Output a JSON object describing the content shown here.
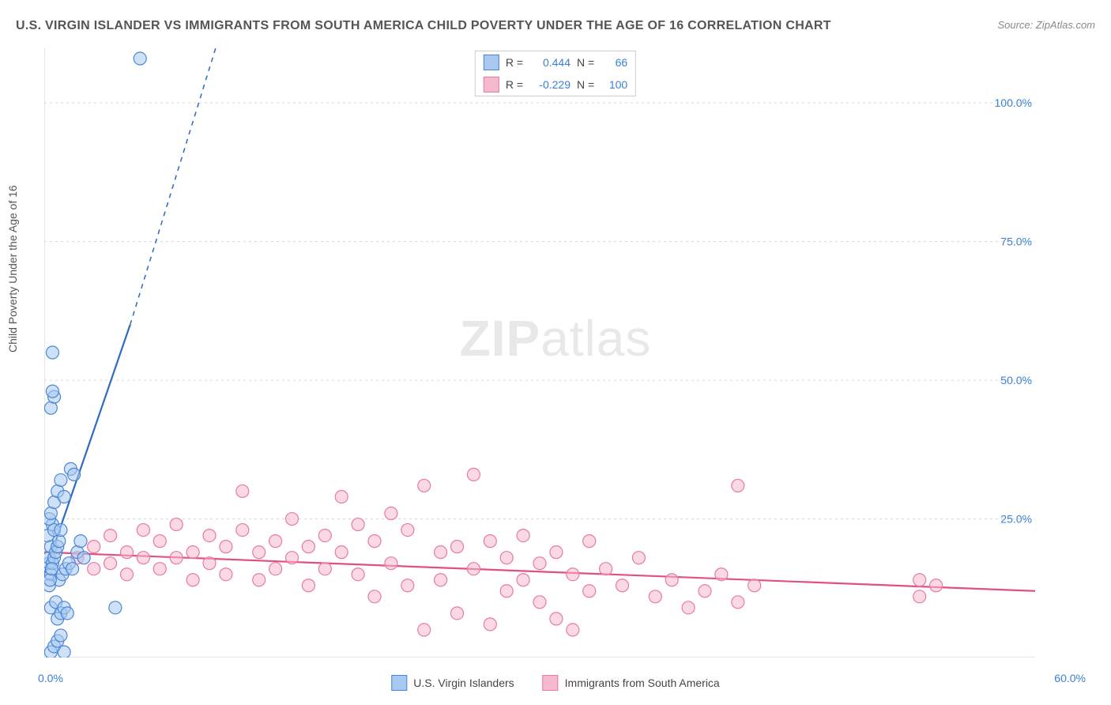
{
  "title": "U.S. VIRGIN ISLANDER VS IMMIGRANTS FROM SOUTH AMERICA CHILD POVERTY UNDER THE AGE OF 16 CORRELATION CHART",
  "source": "Source: ZipAtlas.com",
  "y_axis_label": "Child Poverty Under the Age of 16",
  "watermark_bold": "ZIP",
  "watermark_light": "atlas",
  "chart": {
    "type": "scatter",
    "background_color": "#ffffff",
    "grid_color": "#d8d8d8",
    "axis_color": "#cccccc",
    "xlim": [
      0,
      60
    ],
    "ylim": [
      0,
      110
    ],
    "y_ticks": [
      25,
      50,
      75,
      100
    ],
    "y_tick_labels": [
      "25.0%",
      "50.0%",
      "75.0%",
      "100.0%"
    ],
    "y_tick_color": "#3a7fd5",
    "x_tick_labels": [
      "0.0%",
      "60.0%"
    ],
    "marker_radius": 8,
    "series": [
      {
        "name": "U.S. Virgin Islanders",
        "color_fill": "#a8c8ef",
        "color_stroke": "#4a86d8",
        "swatch_fill": "#a8c8ef",
        "swatch_stroke": "#4a86d8",
        "R": "0.444",
        "N": "66",
        "trend": {
          "x1": 0,
          "y1": 15,
          "x2": 5.2,
          "y2": 60,
          "dash_x2": 10.6,
          "dash_y2": 112,
          "stroke": "#2f6bc0",
          "width": 2.2
        },
        "points": [
          [
            0.3,
            17
          ],
          [
            0.3,
            18
          ],
          [
            0.4,
            20
          ],
          [
            0.2,
            22
          ],
          [
            0.5,
            24
          ],
          [
            0.3,
            25
          ],
          [
            0.6,
            23
          ],
          [
            0.4,
            26
          ],
          [
            0.4,
            9
          ],
          [
            0.7,
            10
          ],
          [
            0.8,
            7
          ],
          [
            1.0,
            8
          ],
          [
            1.2,
            9
          ],
          [
            1.4,
            8
          ],
          [
            0.4,
            15
          ],
          [
            0.5,
            17
          ],
          [
            0.6,
            18
          ],
          [
            0.7,
            19
          ],
          [
            0.8,
            20
          ],
          [
            0.9,
            21
          ],
          [
            1.0,
            23
          ],
          [
            0.6,
            28
          ],
          [
            0.8,
            30
          ],
          [
            1.0,
            32
          ],
          [
            1.2,
            29
          ],
          [
            1.6,
            34
          ],
          [
            1.8,
            33
          ],
          [
            0.4,
            45
          ],
          [
            0.6,
            47
          ],
          [
            0.5,
            48
          ],
          [
            0.5,
            55
          ],
          [
            5.8,
            108
          ],
          [
            4.3,
            9
          ],
          [
            0.4,
            1
          ],
          [
            0.6,
            2
          ],
          [
            0.8,
            3
          ],
          [
            1.0,
            4
          ],
          [
            1.2,
            1
          ],
          [
            2.0,
            19
          ],
          [
            2.2,
            21
          ],
          [
            2.4,
            18
          ],
          [
            0.9,
            14
          ],
          [
            1.1,
            15
          ],
          [
            1.3,
            16
          ],
          [
            1.5,
            17
          ],
          [
            1.7,
            16
          ],
          [
            0.3,
            13
          ],
          [
            0.35,
            14
          ],
          [
            0.45,
            16
          ]
        ]
      },
      {
        "name": "Immigrants from South America",
        "color_fill": "#f5b8ce",
        "color_stroke": "#e77aa5",
        "swatch_fill": "#f5b8ce",
        "swatch_stroke": "#e77aa5",
        "R": "-0.229",
        "N": "100",
        "trend": {
          "x1": 0,
          "y1": 19,
          "x2": 60,
          "y2": 12,
          "stroke": "#e24f86",
          "width": 2.2
        },
        "points": [
          [
            2,
            18
          ],
          [
            3,
            20
          ],
          [
            3,
            16
          ],
          [
            4,
            22
          ],
          [
            4,
            17
          ],
          [
            5,
            19
          ],
          [
            5,
            15
          ],
          [
            6,
            23
          ],
          [
            6,
            18
          ],
          [
            7,
            21
          ],
          [
            7,
            16
          ],
          [
            8,
            24
          ],
          [
            8,
            18
          ],
          [
            9,
            19
          ],
          [
            9,
            14
          ],
          [
            10,
            22
          ],
          [
            10,
            17
          ],
          [
            11,
            20
          ],
          [
            11,
            15
          ],
          [
            12,
            23
          ],
          [
            12,
            30
          ],
          [
            13,
            19
          ],
          [
            13,
            14
          ],
          [
            14,
            21
          ],
          [
            14,
            16
          ],
          [
            15,
            25
          ],
          [
            15,
            18
          ],
          [
            16,
            20
          ],
          [
            16,
            13
          ],
          [
            17,
            22
          ],
          [
            17,
            16
          ],
          [
            18,
            29
          ],
          [
            18,
            19
          ],
          [
            19,
            24
          ],
          [
            19,
            15
          ],
          [
            20,
            21
          ],
          [
            20,
            11
          ],
          [
            21,
            26
          ],
          [
            21,
            17
          ],
          [
            22,
            23
          ],
          [
            22,
            13
          ],
          [
            23,
            31
          ],
          [
            23,
            5
          ],
          [
            24,
            19
          ],
          [
            24,
            14
          ],
          [
            25,
            20
          ],
          [
            25,
            8
          ],
          [
            26,
            33
          ],
          [
            26,
            16
          ],
          [
            27,
            21
          ],
          [
            27,
            6
          ],
          [
            28,
            18
          ],
          [
            28,
            12
          ],
          [
            29,
            22
          ],
          [
            29,
            14
          ],
          [
            30,
            17
          ],
          [
            30,
            10
          ],
          [
            31,
            19
          ],
          [
            31,
            7
          ],
          [
            32,
            15
          ],
          [
            32,
            5
          ],
          [
            33,
            21
          ],
          [
            33,
            12
          ],
          [
            34,
            16
          ],
          [
            35,
            13
          ],
          [
            36,
            18
          ],
          [
            37,
            11
          ],
          [
            38,
            14
          ],
          [
            39,
            9
          ],
          [
            40,
            12
          ],
          [
            41,
            15
          ],
          [
            42,
            31
          ],
          [
            42,
            10
          ],
          [
            43,
            13
          ],
          [
            53,
            14
          ],
          [
            53,
            11
          ],
          [
            54,
            13
          ]
        ]
      }
    ]
  },
  "legend_top": [
    {
      "R_label": "R =",
      "N_label": "N ="
    },
    {
      "R_label": "R =",
      "N_label": "N ="
    }
  ],
  "legend_bottom": [
    "U.S. Virgin Islanders",
    "Immigrants from South America"
  ]
}
